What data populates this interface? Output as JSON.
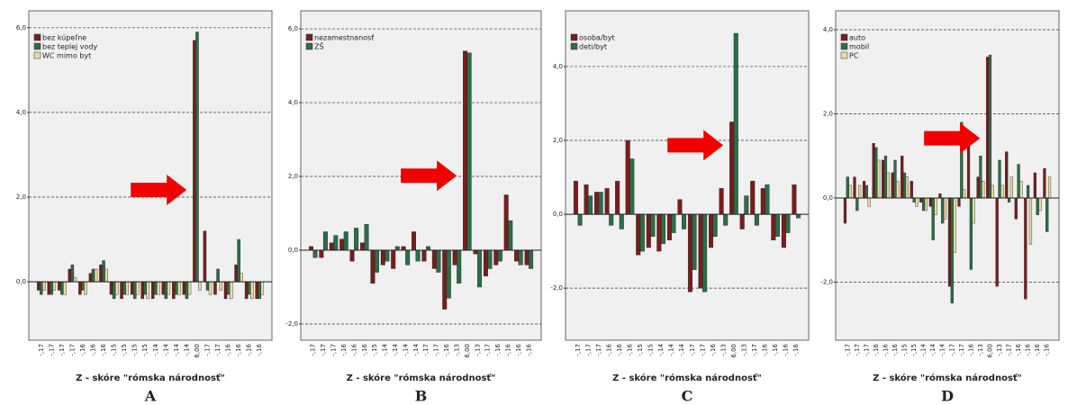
{
  "chart_data": [
    {
      "type": "bar",
      "panel_label": "A",
      "x_label": "Z - skóre \"rómska národnosť\"",
      "grid": true,
      "legend": "top-left",
      "ylim": [
        -1.38,
        6.4
      ],
      "yticks": [
        {
          "value": 0,
          "label": "0,0"
        },
        {
          "value": 2,
          "label": "2,0"
        },
        {
          "value": 4,
          "label": "4,0"
        },
        {
          "value": 6,
          "label": "6,0"
        }
      ],
      "categories": [
        "-,17",
        "-,17",
        "-,17",
        "-,17",
        "-,16",
        "-,16",
        "-,16",
        "-,15",
        "-,15",
        "-,15",
        "-,15",
        "-,14",
        "-,14",
        "-,14",
        "-,14",
        "6,00",
        "-,17",
        "-,17",
        "-,16",
        "-,16",
        "-,16",
        "-,16"
      ],
      "series": [
        {
          "name": "bez kúpeľne",
          "color": "#7b1c1c",
          "values": [
            -0.2,
            -0.3,
            -0.2,
            0.3,
            -0.3,
            0.2,
            0.4,
            -0.3,
            -0.4,
            -0.3,
            -0.4,
            -0.4,
            -0.3,
            -0.4,
            -0.3,
            5.7,
            1.2,
            -0.3,
            -0.4,
            0.4,
            -0.4,
            -0.4
          ]
        },
        {
          "name": "bez teplej vody",
          "color": "#2a6e47",
          "values": [
            -0.3,
            -0.3,
            -0.3,
            0.4,
            -0.2,
            0.3,
            0.5,
            -0.4,
            -0.3,
            -0.4,
            -0.3,
            -0.3,
            -0.4,
            -0.3,
            -0.4,
            5.9,
            -0.2,
            0.3,
            -0.3,
            1.0,
            -0.3,
            -0.4
          ]
        },
        {
          "name": "WC mimo byt",
          "color": "#e6dca0",
          "values": [
            -0.2,
            -0.2,
            -0.3,
            0.1,
            -0.3,
            0.3,
            0.3,
            -0.3,
            -0.3,
            -0.3,
            -0.4,
            -0.3,
            -0.3,
            -0.3,
            -0.3,
            -0.2,
            -0.3,
            -0.2,
            -0.4,
            0.2,
            -0.4,
            -0.3
          ]
        }
      ]
    },
    {
      "type": "bar",
      "panel_label": "B",
      "x_label": "Z - skóre \"rómska národnosť\"",
      "grid": true,
      "legend": "top-left",
      "ylim": [
        -2.44,
        6.49
      ],
      "yticks": [
        {
          "value": -2,
          "label": "-2,0"
        },
        {
          "value": 0,
          "label": "0,0"
        },
        {
          "value": 2,
          "label": "2,0"
        },
        {
          "value": 4,
          "label": "4,0"
        },
        {
          "value": 6,
          "label": "6,0"
        }
      ],
      "categories": [
        "-,17",
        "-,17",
        "-,17",
        "-,16",
        "-,16",
        "-,16",
        "-,15",
        "-,14",
        "-,14",
        "-,14",
        "-,14",
        "-,17",
        "-,17",
        "-,16",
        "-,13",
        "6,00",
        "-,13",
        "-,17",
        "-,16",
        "-,16",
        "-,16",
        "-,16"
      ],
      "series": [
        {
          "name": "nezamestnanosť",
          "color": "#7b1c1c",
          "values": [
            0.1,
            -0.2,
            0.2,
            0.3,
            -0.3,
            0.2,
            -0.9,
            -0.4,
            -0.5,
            0.1,
            0.5,
            -0.3,
            -0.5,
            -1.6,
            -0.4,
            5.4,
            -0.1,
            -0.7,
            -0.4,
            1.5,
            -0.3,
            -0.4
          ]
        },
        {
          "name": "ZŠ",
          "color": "#2a6e47",
          "values": [
            -0.2,
            0.5,
            0.4,
            0.5,
            0.6,
            0.7,
            -0.6,
            -0.3,
            0.1,
            -0.4,
            -0.3,
            0.1,
            -0.6,
            -1.3,
            -0.9,
            5.35,
            -1.0,
            -0.5,
            -0.3,
            0.8,
            -0.4,
            -0.5
          ]
        }
      ]
    },
    {
      "type": "bar",
      "panel_label": "C",
      "x_label": "Z - skóre \"rómska národnosť\"",
      "grid": true,
      "legend": "top-left",
      "ylim": [
        -3.41,
        5.51
      ],
      "yticks": [
        {
          "value": -2,
          "label": "-2,0"
        },
        {
          "value": 0,
          "label": "0,0"
        },
        {
          "value": 2,
          "label": "2,0"
        },
        {
          "value": 4,
          "label": "4,0"
        }
      ],
      "categories": [
        "-,17",
        "-,17",
        "-,17",
        "-,16",
        "-,16",
        "-,16",
        "-,15",
        "-,15",
        "-,14",
        "-,14",
        "-,14",
        "-,17",
        "-,17",
        "-,16",
        "-,13",
        "6,00",
        "-,13",
        "-,17",
        "-,16",
        "-,16",
        "-,16",
        "-,16"
      ],
      "series": [
        {
          "name": "osoba/byt",
          "color": "#7b1c1c",
          "values": [
            0.9,
            0.8,
            0.6,
            0.7,
            0.9,
            2.0,
            -1.1,
            -0.9,
            -1.0,
            -0.7,
            0.4,
            -2.1,
            -2.0,
            -0.9,
            0.7,
            2.5,
            -0.4,
            0.9,
            0.7,
            -0.7,
            -0.9,
            0.8
          ]
        },
        {
          "name": "deti/byt",
          "color": "#2a6e47",
          "values": [
            -0.3,
            0.5,
            0.6,
            -0.3,
            -0.4,
            1.5,
            -1.0,
            -0.6,
            -0.8,
            -0.5,
            -0.4,
            -1.5,
            -2.1,
            -0.6,
            -0.3,
            4.9,
            0.5,
            -0.3,
            0.8,
            -0.6,
            -0.5,
            -0.1
          ]
        }
      ]
    },
    {
      "type": "bar",
      "panel_label": "D",
      "x_label": "Z - skóre \"rómska národnosť\"",
      "grid": true,
      "legend": "top-left",
      "ylim": [
        -3.38,
        4.45
      ],
      "yticks": [
        {
          "value": -2,
          "label": "-2,0"
        },
        {
          "value": 0,
          "label": "0,0"
        },
        {
          "value": 2,
          "label": "2,0"
        },
        {
          "value": 4,
          "label": "4,0"
        }
      ],
      "categories": [
        "-,17",
        "-,17",
        "-,17",
        "-,16",
        "-,16",
        "-,16",
        "-,15",
        "-,15",
        "-,14",
        "-,14",
        "-,14",
        "-,17",
        "-,17",
        "-,16",
        "-,13",
        "6,00",
        "-,13",
        "-,17",
        "-,16",
        "-,16",
        "-,16",
        "-,16"
      ],
      "series": [
        {
          "name": "auto",
          "color": "#7b1c1c",
          "values": [
            -0.6,
            0.5,
            0.4,
            1.3,
            0.9,
            0.6,
            1.0,
            0.4,
            -0.1,
            -0.2,
            0.1,
            -2.1,
            -0.2,
            1.6,
            0.5,
            3.35,
            -2.1,
            1.1,
            -0.5,
            -2.4,
            0.6,
            0.7
          ]
        },
        {
          "name": "mobil",
          "color": "#2a6e47",
          "values": [
            0.5,
            -0.3,
            0.3,
            1.2,
            1.0,
            0.9,
            0.6,
            -0.1,
            -0.3,
            -1.0,
            -0.6,
            -2.5,
            1.8,
            -1.7,
            1.0,
            3.4,
            0.9,
            -0.1,
            0.8,
            0.3,
            -0.4,
            -0.8
          ]
        },
        {
          "name": "PC",
          "color": "#e6dca0",
          "values": [
            0.3,
            0.3,
            -0.2,
            0.9,
            0.6,
            0.4,
            0.5,
            -0.2,
            -0.3,
            -0.4,
            -0.5,
            -1.3,
            0.2,
            -0.6,
            0.4,
            0.3,
            0.3,
            0.5,
            0.4,
            -1.1,
            -0.3,
            0.5
          ]
        }
      ]
    }
  ]
}
